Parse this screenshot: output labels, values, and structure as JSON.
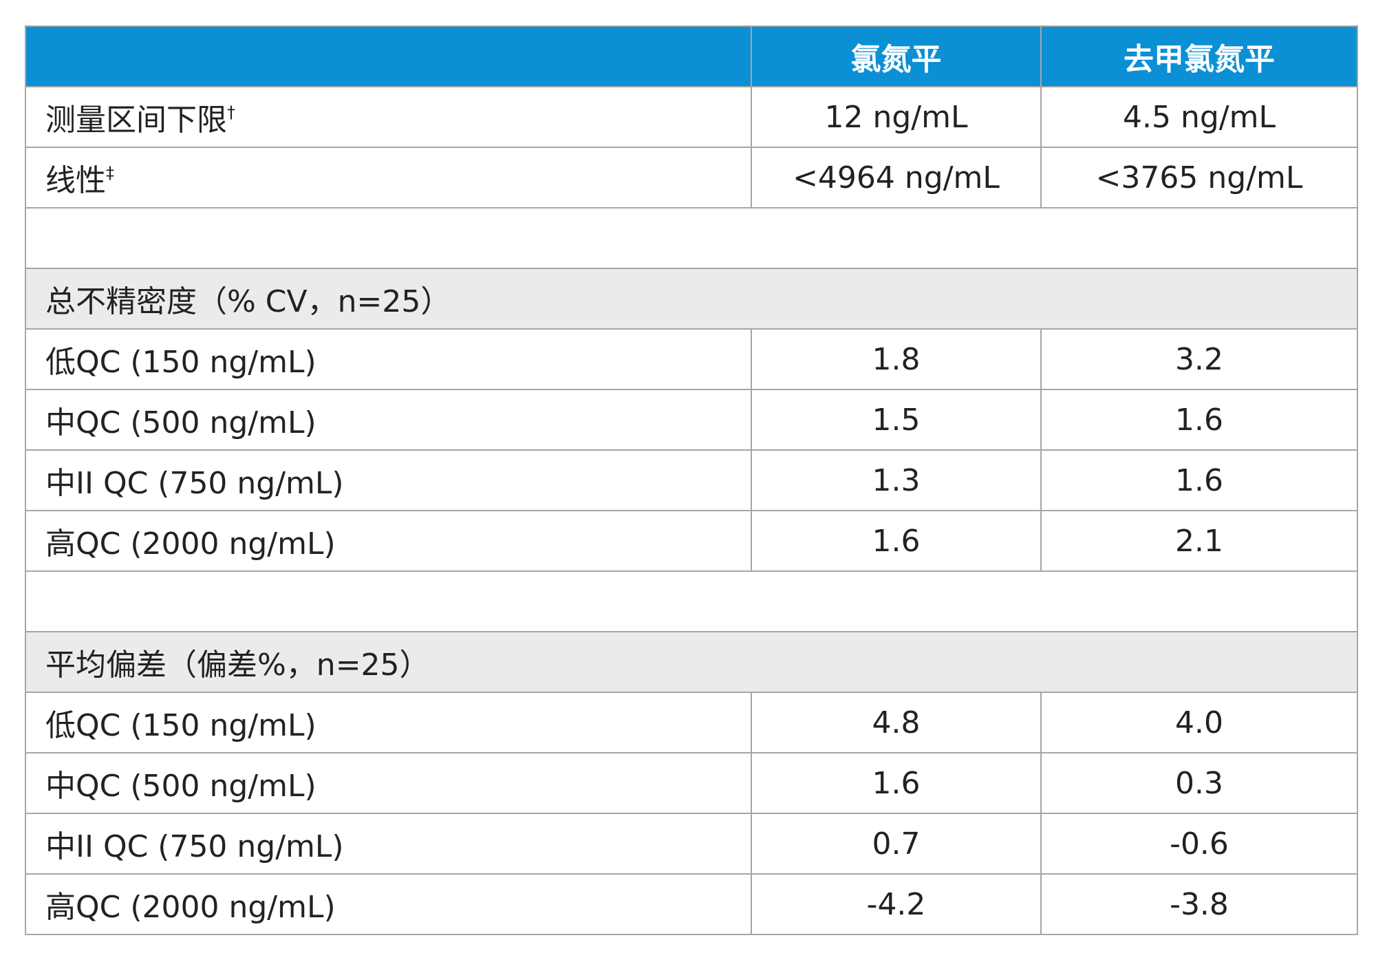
{
  "table": {
    "header": [
      "氯氮平",
      "去甲氯氮平"
    ],
    "limits": [
      {
        "label": "测量区间下限",
        "note": "†",
        "values": [
          "12 ng/mL",
          "4.5 ng/mL"
        ]
      },
      {
        "label": "线性",
        "note": "‡",
        "values": [
          "<4964 ng/mL",
          "<3765 ng/mL"
        ]
      }
    ],
    "sections": [
      {
        "title": "总不精密度（% CV，n=25）",
        "rows": [
          {
            "label": "低QC (150 ng/mL)",
            "values": [
              "1.8",
              "3.2"
            ]
          },
          {
            "label": "中QC (500 ng/mL)",
            "values": [
              "1.5",
              "1.6"
            ]
          },
          {
            "label": "中II QC (750 ng/mL)",
            "values": [
              "1.3",
              "1.6"
            ]
          },
          {
            "label": "高QC (2000 ng/mL)",
            "values": [
              "1.6",
              "2.1"
            ]
          }
        ]
      },
      {
        "title": "平均偏差（偏差%，n=25）",
        "rows": [
          {
            "label": "低QC (150 ng/mL)",
            "values": [
              "4.8",
              "4.0"
            ]
          },
          {
            "label": "中QC (500 ng/mL)",
            "values": [
              "1.6",
              "0.3"
            ]
          },
          {
            "label": "中II QC (750 ng/mL)",
            "values": [
              "0.7",
              "-0.6"
            ]
          },
          {
            "label": "高QC (2000 ng/mL)",
            "values": [
              "-4.2",
              "-3.8"
            ]
          }
        ]
      }
    ]
  }
}
